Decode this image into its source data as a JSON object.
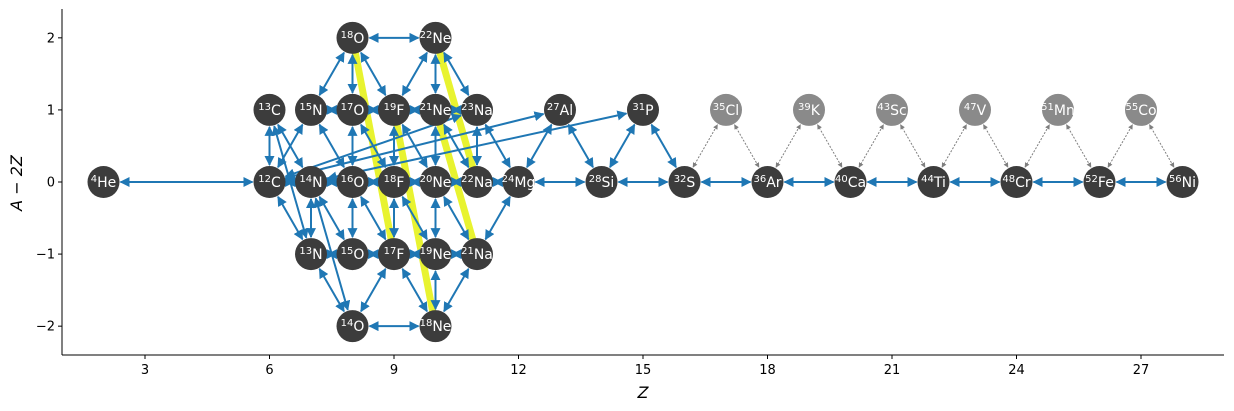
{
  "colors": {
    "node_dark": "#3c3c3c",
    "node_light": "#8a8a8a",
    "edge_strong": "#1f77b4",
    "edge_weak": "#7f7f7f",
    "highlight": "#e6f21a"
  },
  "axes": {
    "xlabel": "Z",
    "ylabel": "A − 2Z",
    "xlim": [
      1.0,
      29.0
    ],
    "ylim": [
      -2.4,
      2.4
    ],
    "xticks": [
      3,
      6,
      9,
      12,
      15,
      18,
      21,
      24,
      27
    ],
    "yticks": [
      -2,
      -1,
      0,
      1,
      2
    ],
    "xtick_labels": [
      "3",
      "6",
      "9",
      "12",
      "15",
      "18",
      "21",
      "24",
      "27"
    ],
    "ytick_labels": [
      "−2",
      "−1",
      "0",
      "1",
      "2"
    ]
  },
  "chart_data": {
    "type": "network",
    "nodes": [
      {
        "id": "He4",
        "element": "He",
        "A": "4",
        "Z": 2,
        "y": 0,
        "style": "dark"
      },
      {
        "id": "C12",
        "element": "C",
        "A": "12",
        "Z": 6,
        "y": 0,
        "style": "dark"
      },
      {
        "id": "C13",
        "element": "C",
        "A": "13",
        "Z": 6,
        "y": 1,
        "style": "dark"
      },
      {
        "id": "N13",
        "element": "N",
        "A": "13",
        "Z": 7,
        "y": -1,
        "style": "dark"
      },
      {
        "id": "N14",
        "element": "N",
        "A": "14",
        "Z": 7,
        "y": 0,
        "style": "dark"
      },
      {
        "id": "N15",
        "element": "N",
        "A": "15",
        "Z": 7,
        "y": 1,
        "style": "dark"
      },
      {
        "id": "O14",
        "element": "O",
        "A": "14",
        "Z": 8,
        "y": -2,
        "style": "dark"
      },
      {
        "id": "O15",
        "element": "O",
        "A": "15",
        "Z": 8,
        "y": -1,
        "style": "dark"
      },
      {
        "id": "O16",
        "element": "O",
        "A": "16",
        "Z": 8,
        "y": 0,
        "style": "dark"
      },
      {
        "id": "O17",
        "element": "O",
        "A": "17",
        "Z": 8,
        "y": 1,
        "style": "dark"
      },
      {
        "id": "O18",
        "element": "O",
        "A": "18",
        "Z": 8,
        "y": 2,
        "style": "dark"
      },
      {
        "id": "F17",
        "element": "F",
        "A": "17",
        "Z": 9,
        "y": -1,
        "style": "dark"
      },
      {
        "id": "F18",
        "element": "F",
        "A": "18",
        "Z": 9,
        "y": 0,
        "style": "dark"
      },
      {
        "id": "F19",
        "element": "F",
        "A": "19",
        "Z": 9,
        "y": 1,
        "style": "dark"
      },
      {
        "id": "Ne18",
        "element": "Ne",
        "A": "18",
        "Z": 10,
        "y": -2,
        "style": "dark"
      },
      {
        "id": "Ne19",
        "element": "Ne",
        "A": "19",
        "Z": 10,
        "y": -1,
        "style": "dark"
      },
      {
        "id": "Ne20",
        "element": "Ne",
        "A": "20",
        "Z": 10,
        "y": 0,
        "style": "dark"
      },
      {
        "id": "Ne21",
        "element": "Ne",
        "A": "21",
        "Z": 10,
        "y": 1,
        "style": "dark"
      },
      {
        "id": "Ne22b",
        "element": "Ne",
        "A": "22",
        "Z": 10,
        "y": 2,
        "style": "dark"
      },
      {
        "id": "Na21",
        "element": "Na",
        "A": "21",
        "Z": 11,
        "y": -1,
        "style": "dark"
      },
      {
        "id": "Na22",
        "element": "Na",
        "A": "22",
        "Z": 11,
        "y": 0,
        "style": "dark"
      },
      {
        "id": "Na23",
        "element": "Na",
        "A": "23",
        "Z": 11,
        "y": 1,
        "style": "dark"
      },
      {
        "id": "Mg24",
        "element": "Mg",
        "A": "24",
        "Z": 12,
        "y": 0,
        "style": "dark"
      },
      {
        "id": "Al27",
        "element": "Al",
        "A": "27",
        "Z": 13,
        "y": 1,
        "style": "dark"
      },
      {
        "id": "Si28",
        "element": "Si",
        "A": "28",
        "Z": 14,
        "y": 0,
        "style": "dark"
      },
      {
        "id": "P31",
        "element": "P",
        "A": "31",
        "Z": 15,
        "y": 1,
        "style": "dark"
      },
      {
        "id": "S32",
        "element": "S",
        "A": "32",
        "Z": 16,
        "y": 0,
        "style": "dark"
      },
      {
        "id": "Cl35",
        "element": "Cl",
        "A": "35",
        "Z": 17,
        "y": 1,
        "style": "light"
      },
      {
        "id": "Ar36",
        "element": "Ar",
        "A": "36",
        "Z": 18,
        "y": 0,
        "style": "dark"
      },
      {
        "id": "K39",
        "element": "K",
        "A": "39",
        "Z": 19,
        "y": 1,
        "style": "light"
      },
      {
        "id": "Ca40",
        "element": "Ca",
        "A": "40",
        "Z": 20,
        "y": 0,
        "style": "dark"
      },
      {
        "id": "Sc43",
        "element": "Sc",
        "A": "43",
        "Z": 21,
        "y": 1,
        "style": "light"
      },
      {
        "id": "Ti44",
        "element": "Ti",
        "A": "44",
        "Z": 22,
        "y": 0,
        "style": "dark"
      },
      {
        "id": "V47",
        "element": "V",
        "A": "47",
        "Z": 23,
        "y": 1,
        "style": "light"
      },
      {
        "id": "Cr48",
        "element": "Cr",
        "A": "48",
        "Z": 24,
        "y": 0,
        "style": "dark"
      },
      {
        "id": "Mn51",
        "element": "Mn",
        "A": "51",
        "Z": 25,
        "y": 1,
        "style": "light"
      },
      {
        "id": "Fe52",
        "element": "Fe",
        "A": "52",
        "Z": 26,
        "y": 0,
        "style": "dark"
      },
      {
        "id": "Co55",
        "element": "Co",
        "A": "55",
        "Z": 27,
        "y": 1,
        "style": "light"
      },
      {
        "id": "Ni56",
        "element": "Ni",
        "A": "56",
        "Z": 28,
        "y": 0,
        "style": "dark"
      }
    ],
    "highlights": [
      [
        "O18",
        "F17"
      ],
      [
        "F19",
        "Ne18"
      ],
      [
        "Ne21",
        "Na21"
      ],
      [
        "Ne22b",
        "Na22"
      ]
    ],
    "edges": [
      {
        "from": "He4",
        "to": "C12",
        "style": "strong"
      },
      {
        "from": "C12",
        "to": "N13",
        "style": "strong"
      },
      {
        "from": "C12",
        "to": "N14",
        "style": "strong"
      },
      {
        "from": "C12",
        "to": "C13",
        "style": "strong"
      },
      {
        "from": "C12",
        "to": "O16",
        "style": "strong"
      },
      {
        "from": "C12",
        "to": "Ne20",
        "style": "strong"
      },
      {
        "from": "C12",
        "to": "Na23",
        "style": "strong"
      },
      {
        "from": "C12",
        "to": "Mg24",
        "style": "strong"
      },
      {
        "from": "C12",
        "to": "Al27",
        "style": "strong"
      },
      {
        "from": "C13",
        "to": "N14",
        "style": "strong"
      },
      {
        "from": "C13",
        "to": "N13",
        "style": "strong"
      },
      {
        "from": "N13",
        "to": "O14",
        "style": "strong"
      },
      {
        "from": "N13",
        "to": "O15",
        "style": "strong"
      },
      {
        "from": "N13",
        "to": "N14",
        "style": "strong"
      },
      {
        "from": "N14",
        "to": "O15",
        "style": "strong"
      },
      {
        "from": "N14",
        "to": "O16",
        "style": "strong"
      },
      {
        "from": "N14",
        "to": "O14",
        "style": "strong"
      },
      {
        "from": "N14",
        "to": "F18",
        "style": "strong"
      },
      {
        "from": "N14",
        "to": "P31",
        "style": "strong"
      },
      {
        "from": "N15",
        "to": "O16",
        "style": "strong"
      },
      {
        "from": "N15",
        "to": "O18",
        "style": "strong"
      },
      {
        "from": "N15",
        "to": "C12",
        "style": "strong"
      },
      {
        "from": "O14",
        "to": "F17",
        "style": "strong"
      },
      {
        "from": "O14",
        "to": "Ne18",
        "style": "strong"
      },
      {
        "from": "O15",
        "to": "O16",
        "style": "strong"
      },
      {
        "from": "O15",
        "to": "F17",
        "style": "strong"
      },
      {
        "from": "O16",
        "to": "F17",
        "style": "strong"
      },
      {
        "from": "O16",
        "to": "O17",
        "style": "strong"
      },
      {
        "from": "O16",
        "to": "F18",
        "style": "strong"
      },
      {
        "from": "O17",
        "to": "F18",
        "style": "strong"
      },
      {
        "from": "O17",
        "to": "F19",
        "style": "strong"
      },
      {
        "from": "O17",
        "to": "O18",
        "style": "strong"
      },
      {
        "from": "O17",
        "to": "N15",
        "style": "strong"
      },
      {
        "from": "O18",
        "to": "F19",
        "style": "strong"
      },
      {
        "from": "O18",
        "to": "Ne22b",
        "style": "strong"
      },
      {
        "from": "F17",
        "to": "Ne18",
        "style": "strong"
      },
      {
        "from": "F17",
        "to": "Ne19",
        "style": "strong"
      },
      {
        "from": "F17",
        "to": "F18",
        "style": "strong"
      },
      {
        "from": "F18",
        "to": "Ne19",
        "style": "strong"
      },
      {
        "from": "F18",
        "to": "Ne20",
        "style": "strong"
      },
      {
        "from": "F18",
        "to": "F19",
        "style": "strong"
      },
      {
        "from": "F19",
        "to": "Ne20",
        "style": "strong"
      },
      {
        "from": "F19",
        "to": "Ne21",
        "style": "strong"
      },
      {
        "from": "F19",
        "to": "Ne22b",
        "style": "strong"
      },
      {
        "from": "Ne18",
        "to": "Na21",
        "style": "strong"
      },
      {
        "from": "Ne18",
        "to": "Ne19",
        "style": "strong"
      },
      {
        "from": "Ne19",
        "to": "Ne20",
        "style": "strong"
      },
      {
        "from": "Ne19",
        "to": "Na21",
        "style": "strong"
      },
      {
        "from": "Ne20",
        "to": "Na21",
        "style": "strong"
      },
      {
        "from": "Ne20",
        "to": "Ne21",
        "style": "strong"
      },
      {
        "from": "Ne20",
        "to": "Na22",
        "style": "strong"
      },
      {
        "from": "Ne21",
        "to": "Na22",
        "style": "strong"
      },
      {
        "from": "Ne21",
        "to": "Ne22b",
        "style": "strong"
      },
      {
        "from": "Ne21",
        "to": "Na23",
        "style": "strong"
      },
      {
        "from": "Ne22b",
        "to": "Na23",
        "style": "strong"
      },
      {
        "from": "Na21",
        "to": "Mg24",
        "style": "strong"
      },
      {
        "from": "Na22",
        "to": "Na23",
        "style": "strong"
      },
      {
        "from": "Na22",
        "to": "Mg24",
        "style": "strong"
      },
      {
        "from": "Na23",
        "to": "Mg24",
        "style": "strong"
      },
      {
        "from": "Mg24",
        "to": "Al27",
        "style": "strong"
      },
      {
        "from": "Mg24",
        "to": "Si28",
        "style": "strong"
      },
      {
        "from": "Al27",
        "to": "Si28",
        "style": "strong"
      },
      {
        "from": "Si28",
        "to": "P31",
        "style": "strong"
      },
      {
        "from": "Si28",
        "to": "S32",
        "style": "strong"
      },
      {
        "from": "P31",
        "to": "S32",
        "style": "strong"
      },
      {
        "from": "S32",
        "to": "Ar36",
        "style": "strong"
      },
      {
        "from": "Ar36",
        "to": "Ca40",
        "style": "strong"
      },
      {
        "from": "Ca40",
        "to": "Ti44",
        "style": "strong"
      },
      {
        "from": "Ti44",
        "to": "Cr48",
        "style": "strong"
      },
      {
        "from": "Cr48",
        "to": "Fe52",
        "style": "strong"
      },
      {
        "from": "Fe52",
        "to": "Ni56",
        "style": "strong"
      },
      {
        "from": "S32",
        "to": "Cl35",
        "style": "weak"
      },
      {
        "from": "Cl35",
        "to": "Ar36",
        "style": "weak"
      },
      {
        "from": "Ar36",
        "to": "K39",
        "style": "weak"
      },
      {
        "from": "K39",
        "to": "Ca40",
        "style": "weak"
      },
      {
        "from": "Ca40",
        "to": "Sc43",
        "style": "weak"
      },
      {
        "from": "Sc43",
        "to": "Ti44",
        "style": "weak"
      },
      {
        "from": "Ti44",
        "to": "V47",
        "style": "weak"
      },
      {
        "from": "V47",
        "to": "Cr48",
        "style": "weak"
      },
      {
        "from": "Cr48",
        "to": "Mn51",
        "style": "weak"
      },
      {
        "from": "Mn51",
        "to": "Fe52",
        "style": "weak"
      },
      {
        "from": "Fe52",
        "to": "Co55",
        "style": "weak"
      },
      {
        "from": "Co55",
        "to": "Ni56",
        "style": "weak"
      }
    ]
  }
}
